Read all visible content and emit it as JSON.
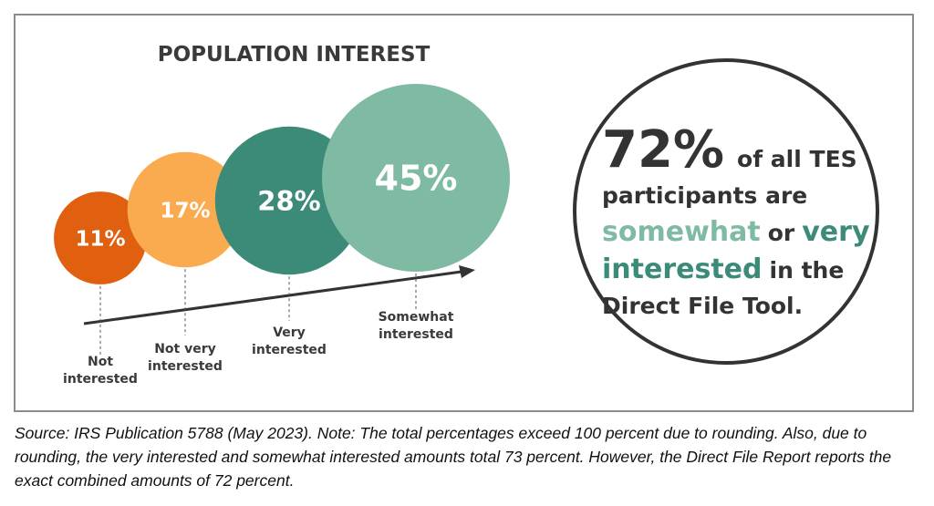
{
  "chart_data": {
    "type": "bubble",
    "title": "POPULATION INTEREST",
    "categories": [
      "Not interested",
      "Not very interested",
      "Very interested",
      "Somewhat interested"
    ],
    "category_lines": [
      [
        "Not",
        "interested"
      ],
      [
        "Not very",
        "interested"
      ],
      [
        "Very",
        "interested"
      ],
      [
        "Somewhat",
        "interested"
      ]
    ],
    "values": [
      11,
      17,
      28,
      45
    ],
    "value_labels": [
      "11%",
      "17%",
      "28%",
      "45%"
    ],
    "colors": [
      "#e0600f",
      "#fbab4f",
      "#3c8a78",
      "#7fbaa2"
    ],
    "trend_arrow": "increasing"
  },
  "callout": {
    "big_number": "72%",
    "line1_rest": "of all TES",
    "line2": "participants are",
    "line3_word1": "somewhat",
    "line3_mid": "or",
    "line3_word2": "very",
    "line4_word": "interested",
    "line4_rest": "in the",
    "line5": "Direct File Tool.",
    "colors": {
      "somewhat": "#7fbaa2",
      "very": "#3c8a78",
      "interested": "#3c8a78",
      "text": "#333333"
    }
  },
  "source_note": "Source:  IRS Publication 5788 (May 2023).  Note:  The total percentages exceed 100 percent due to rounding.  Also, due to rounding, the very interested and somewhat interested amounts total 73 percent.  However, the Direct File Report reports the exact combined amounts of 72 percent."
}
